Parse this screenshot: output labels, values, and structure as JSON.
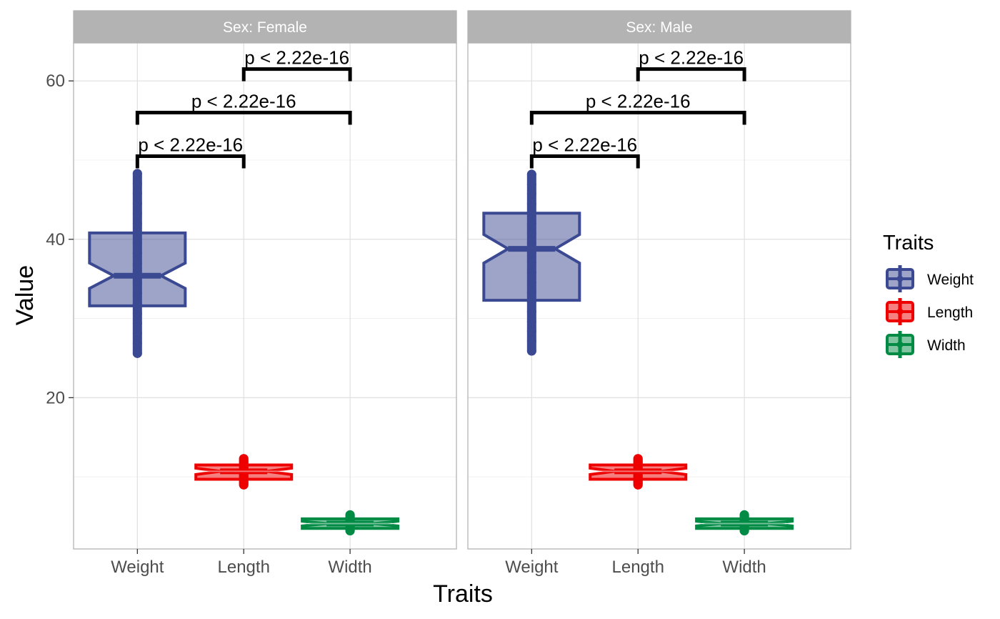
{
  "chart_data": {
    "type": "boxplot",
    "ylabel": "Value",
    "xlabel": "Traits",
    "ylim": [
      0.9,
      64.8
    ],
    "yticks": [
      20,
      40,
      60
    ],
    "categories": [
      "Weight",
      "Length",
      "Width"
    ],
    "legend": {
      "title": "Traits",
      "position": "right",
      "items": [
        {
          "label": "Weight",
          "color": "#3B4992"
        },
        {
          "label": "Length",
          "color": "#EE0000"
        },
        {
          "label": "Width",
          "color": "#008B45"
        }
      ]
    },
    "facets": [
      {
        "label": "Sex: Female",
        "boxes": [
          {
            "trait": "Weight",
            "q1": 31.6,
            "median": 35.4,
            "q3": 40.8,
            "notch_low": 33.8,
            "notch_high": 37.0,
            "min": 25.6,
            "max": 48.3
          },
          {
            "trait": "Length",
            "q1": 9.7,
            "median": 10.7,
            "q3": 11.5,
            "notch_low": 10.3,
            "notch_high": 11.1,
            "min": 9.0,
            "max": 12.3
          },
          {
            "trait": "Width",
            "q1": 3.5,
            "median": 4.1,
            "q3": 4.7,
            "notch_low": 3.8,
            "notch_high": 4.4,
            "min": 3.2,
            "max": 5.2
          }
        ],
        "comparisons": [
          {
            "from": "Weight",
            "to": "Length",
            "y": 50.5,
            "label": "p < 2.22e-16"
          },
          {
            "from": "Weight",
            "to": "Width",
            "y": 56.0,
            "label": "p < 2.22e-16"
          },
          {
            "from": "Length",
            "to": "Width",
            "y": 61.5,
            "label": "p < 2.22e-16"
          }
        ]
      },
      {
        "label": "Sex: Male",
        "boxes": [
          {
            "trait": "Weight",
            "q1": 32.3,
            "median": 38.8,
            "q3": 43.3,
            "notch_low": 37.0,
            "notch_high": 40.6,
            "min": 25.9,
            "max": 48.2
          },
          {
            "trait": "Length",
            "q1": 9.7,
            "median": 10.7,
            "q3": 11.5,
            "notch_low": 10.3,
            "notch_high": 11.1,
            "min": 9.0,
            "max": 12.3
          },
          {
            "trait": "Width",
            "q1": 3.5,
            "median": 4.1,
            "q3": 4.7,
            "notch_low": 3.8,
            "notch_high": 4.4,
            "min": 3.2,
            "max": 5.2
          }
        ],
        "comparisons": [
          {
            "from": "Weight",
            "to": "Length",
            "y": 50.5,
            "label": "p < 2.22e-16"
          },
          {
            "from": "Weight",
            "to": "Width",
            "y": 56.0,
            "label": "p < 2.22e-16"
          },
          {
            "from": "Length",
            "to": "Width",
            "y": 61.5,
            "label": "p < 2.22e-16"
          }
        ]
      }
    ]
  }
}
